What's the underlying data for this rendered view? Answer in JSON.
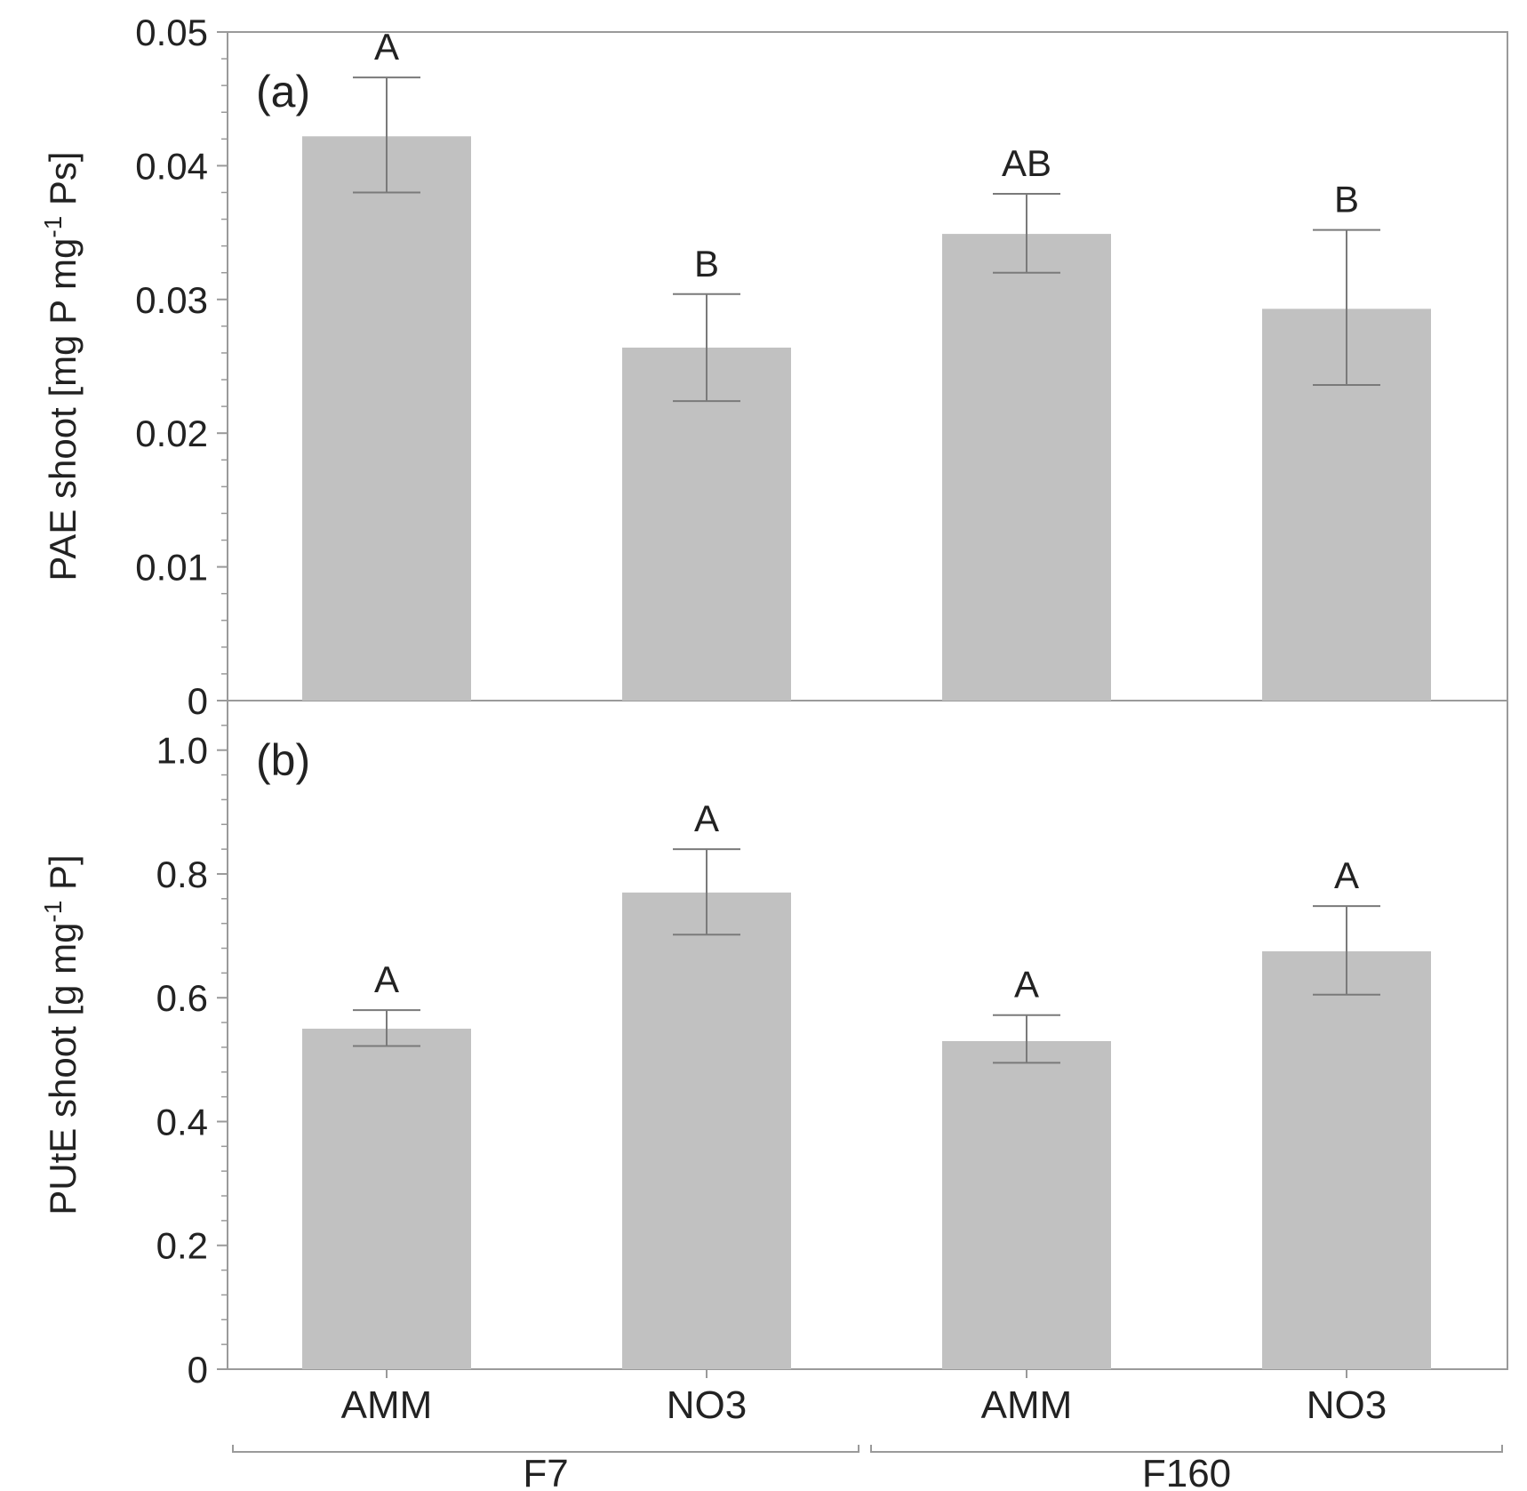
{
  "colors": {
    "bar": "#c1c1c1",
    "axis": "#9a9a9a",
    "errorbar": "#7a7a7a",
    "text": "#222222"
  },
  "chart_data": [
    {
      "panel": "(a)",
      "type": "bar",
      "ylabel": "PAE shoot [mg P mg-1 Ps]",
      "ylabel_parts": {
        "main": "PAE shoot [mg P mg",
        "sup": "-1",
        "tail": " Ps]"
      },
      "ylim": [
        0,
        0.05
      ],
      "yticks": [
        0,
        0.01,
        0.02,
        0.03,
        0.04,
        0.05
      ],
      "ytick_labels": [
        "0",
        "0.01",
        "0.02",
        "0.03",
        "0.04",
        "0.05"
      ],
      "categories": [
        "AMM",
        "NO3",
        "AMM",
        "NO3"
      ],
      "groups": [
        "F7",
        "F7",
        "F160",
        "F160"
      ],
      "values": [
        0.0422,
        0.0264,
        0.0349,
        0.0293
      ],
      "error_upper": [
        0.0466,
        0.0304,
        0.0379,
        0.0352
      ],
      "error_lower": [
        0.038,
        0.0224,
        0.032,
        0.0236
      ],
      "significance": [
        "A",
        "B",
        "AB",
        "B"
      ]
    },
    {
      "panel": "(b)",
      "type": "bar",
      "ylabel": "PUtE shoot [g mg-1 P]",
      "ylabel_parts": {
        "main": "PUtE shoot [g mg",
        "sup": "-1",
        "tail": " P]"
      },
      "ylim": [
        0,
        1.08
      ],
      "yticks": [
        0,
        0.2,
        0.4,
        0.6,
        0.8,
        1.0
      ],
      "ytick_labels": [
        "0",
        "0.2",
        "0.4",
        "0.6",
        "0.8",
        "1.0"
      ],
      "categories": [
        "AMM",
        "NO3",
        "AMM",
        "NO3"
      ],
      "groups": [
        "F7",
        "F7",
        "F160",
        "F160"
      ],
      "values": [
        0.55,
        0.77,
        0.53,
        0.675
      ],
      "error_upper": [
        0.58,
        0.84,
        0.572,
        0.748
      ],
      "error_lower": [
        0.522,
        0.702,
        0.495,
        0.605
      ],
      "significance": [
        "A",
        "A",
        "A",
        "A"
      ]
    }
  ],
  "x_categories": [
    "AMM",
    "NO3",
    "AMM",
    "NO3"
  ],
  "x_groups": [
    "F7",
    "F160"
  ]
}
